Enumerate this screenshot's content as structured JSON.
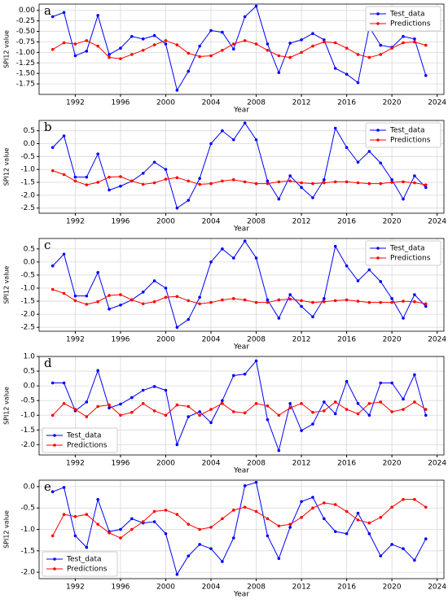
{
  "chart_data": [
    {
      "type": "line",
      "label": "a",
      "ylabel": "SPI12 value",
      "xlabel": "Year",
      "legend": "upper right",
      "grid": true,
      "x": [
        1990,
        1991,
        1992,
        1993,
        1994,
        1995,
        1996,
        1997,
        1998,
        1999,
        2000,
        2001,
        2002,
        2003,
        2004,
        2005,
        2006,
        2007,
        2008,
        2009,
        2010,
        2011,
        2012,
        2013,
        2014,
        2015,
        2016,
        2017,
        2018,
        2019,
        2020,
        2021,
        2022,
        2023
      ],
      "xlim": [
        1988.8,
        2024.6
      ],
      "xticks": [
        1992,
        1996,
        2000,
        2004,
        2008,
        2012,
        2016,
        2020,
        2024
      ],
      "ylim": [
        -2.0,
        0.15
      ],
      "yticks": [
        {
          "value": 0,
          "label": "0.00"
        },
        {
          "value": -0.25,
          "label": "-0.25"
        },
        {
          "value": -0.5,
          "label": "-0.50"
        },
        {
          "value": -0.75,
          "label": "-0.75"
        },
        {
          "value": -1,
          "label": "-1.00"
        },
        {
          "value": -1.25,
          "label": "-1.25"
        },
        {
          "value": -1.5,
          "label": "-1.50"
        },
        {
          "value": -1.75,
          "label": "-1.75"
        }
      ],
      "series": [
        {
          "name": "Test_data",
          "color": "#0000ff",
          "values": [
            -0.15,
            -0.05,
            -1.08,
            -0.97,
            -0.12,
            -1.05,
            -0.9,
            -0.62,
            -0.68,
            -0.6,
            -0.8,
            -1.9,
            -1.45,
            -0.85,
            -0.48,
            -0.52,
            -0.92,
            -0.15,
            0.1,
            -0.8,
            -1.48,
            -0.78,
            -0.7,
            -0.55,
            -0.7,
            -1.38,
            -1.52,
            -1.72,
            -0.4,
            -0.83,
            -0.88,
            -0.62,
            -0.68,
            -1.55
          ]
        },
        {
          "name": "Predictions",
          "color": "#ff0000",
          "values": [
            -0.93,
            -0.77,
            -0.8,
            -0.72,
            -0.85,
            -1.12,
            -1.15,
            -1.05,
            -0.95,
            -0.82,
            -0.72,
            -0.82,
            -1.02,
            -1.1,
            -1.08,
            -0.95,
            -0.8,
            -0.72,
            -0.8,
            -0.95,
            -1.08,
            -1.12,
            -1.0,
            -0.85,
            -0.75,
            -0.77,
            -0.9,
            -1.05,
            -1.12,
            -1.05,
            -0.9,
            -0.77,
            -0.75,
            -0.83
          ]
        }
      ]
    },
    {
      "type": "line",
      "label": "b",
      "ylabel": "SPI12 value",
      "xlabel": "Year",
      "legend": "upper right",
      "grid": true,
      "x": [
        1990,
        1991,
        1992,
        1993,
        1994,
        1995,
        1996,
        1997,
        1998,
        1999,
        2000,
        2001,
        2002,
        2003,
        2004,
        2005,
        2006,
        2007,
        2008,
        2009,
        2010,
        2011,
        2012,
        2013,
        2014,
        2015,
        2016,
        2017,
        2018,
        2019,
        2020,
        2021,
        2022,
        2023
      ],
      "xlim": [
        1988.8,
        2024.6
      ],
      "xticks": [
        1992,
        1996,
        2000,
        2004,
        2008,
        2012,
        2016,
        2020,
        2024
      ],
      "ylim": [
        -2.7,
        0.9
      ],
      "yticks": [
        0.5,
        {
          "value": 0,
          "label": "0.0"
        },
        -0.5,
        {
          "value": -1,
          "label": "-1.0"
        },
        -1.5,
        {
          "value": -2,
          "label": "-2.0"
        },
        -2.5
      ],
      "series": [
        {
          "name": "Test_data",
          "color": "#0000ff",
          "values": [
            -0.15,
            0.3,
            -1.3,
            -1.3,
            -0.4,
            -1.8,
            -1.65,
            -1.45,
            -1.15,
            -0.72,
            -1.0,
            -2.5,
            -2.2,
            -1.35,
            0.0,
            0.5,
            0.15,
            0.8,
            0.15,
            -1.45,
            -2.15,
            -1.25,
            -1.7,
            -2.1,
            -1.4,
            0.6,
            -0.15,
            -0.72,
            -0.3,
            -0.75,
            -1.4,
            -2.15,
            -1.25,
            -1.7
          ]
        },
        {
          "name": "Predictions",
          "color": "#ff0000",
          "values": [
            -1.05,
            -1.2,
            -1.45,
            -1.6,
            -1.5,
            -1.3,
            -1.28,
            -1.45,
            -1.58,
            -1.52,
            -1.38,
            -1.32,
            -1.45,
            -1.58,
            -1.55,
            -1.45,
            -1.4,
            -1.48,
            -1.55,
            -1.55,
            -1.48,
            -1.45,
            -1.52,
            -1.55,
            -1.52,
            -1.48,
            -1.48,
            -1.52,
            -1.55,
            -1.55,
            -1.5,
            -1.48,
            -1.52,
            -1.6
          ]
        }
      ]
    },
    {
      "type": "line",
      "label": "c",
      "ylabel": "SPI12 value",
      "xlabel": "Year",
      "legend": "upper right",
      "grid": true,
      "x": [
        1990,
        1991,
        1992,
        1993,
        1994,
        1995,
        1996,
        1997,
        1998,
        1999,
        2000,
        2001,
        2002,
        2003,
        2004,
        2005,
        2006,
        2007,
        2008,
        2009,
        2010,
        2011,
        2012,
        2013,
        2014,
        2015,
        2016,
        2017,
        2018,
        2019,
        2020,
        2021,
        2022,
        2023
      ],
      "xlim": [
        1988.8,
        2024.6
      ],
      "xticks": [
        1992,
        1996,
        2000,
        2004,
        2008,
        2012,
        2016,
        2020,
        2024
      ],
      "ylim": [
        -2.65,
        0.9
      ],
      "yticks": [
        0.5,
        {
          "value": 0,
          "label": "0.0"
        },
        -0.5,
        {
          "value": -1,
          "label": "-1.0"
        },
        -1.5,
        {
          "value": -2,
          "label": "-2.0"
        },
        -2.5
      ],
      "series": [
        {
          "name": "Test_data",
          "color": "#0000ff",
          "values": [
            -0.15,
            0.3,
            -1.3,
            -1.3,
            -0.4,
            -1.8,
            -1.65,
            -1.45,
            -1.15,
            -0.72,
            -1.0,
            -2.5,
            -2.2,
            -1.35,
            0.0,
            0.5,
            0.15,
            0.8,
            0.15,
            -1.45,
            -2.15,
            -1.25,
            -1.7,
            -2.1,
            -1.4,
            0.6,
            -0.15,
            -0.72,
            -0.3,
            -0.75,
            -1.4,
            -2.15,
            -1.25,
            -1.7
          ]
        },
        {
          "name": "Predictions",
          "color": "#ff0000",
          "values": [
            -1.05,
            -1.2,
            -1.48,
            -1.62,
            -1.52,
            -1.28,
            -1.25,
            -1.45,
            -1.6,
            -1.52,
            -1.35,
            -1.32,
            -1.48,
            -1.6,
            -1.55,
            -1.45,
            -1.4,
            -1.45,
            -1.55,
            -1.55,
            -1.45,
            -1.42,
            -1.48,
            -1.55,
            -1.52,
            -1.48,
            -1.45,
            -1.5,
            -1.55,
            -1.55,
            -1.55,
            -1.5,
            -1.52,
            -1.6
          ]
        }
      ]
    },
    {
      "type": "line",
      "label": "d",
      "ylabel": "SPI12 value",
      "xlabel": "Year",
      "legend": "lower left",
      "grid": true,
      "x": [
        1990,
        1991,
        1992,
        1993,
        1994,
        1995,
        1996,
        1997,
        1998,
        1999,
        2000,
        2001,
        2002,
        2003,
        2004,
        2005,
        2006,
        2007,
        2008,
        2009,
        2010,
        2011,
        2012,
        2013,
        2014,
        2015,
        2016,
        2017,
        2018,
        2019,
        2020,
        2021,
        2022,
        2023
      ],
      "xlim": [
        1988.8,
        2024.6
      ],
      "xticks": [
        1992,
        1996,
        2000,
        2004,
        2008,
        2012,
        2016,
        2020,
        2024
      ],
      "ylim": [
        -2.35,
        1.0
      ],
      "yticks": [
        {
          "value": 1,
          "label": "1.0"
        },
        0.5,
        {
          "value": 0,
          "label": "0.0"
        },
        -0.5,
        {
          "value": -1,
          "label": "-1.0"
        },
        -1.5,
        {
          "value": -2,
          "label": "-2.0"
        }
      ],
      "series": [
        {
          "name": "Test_data",
          "color": "#0000ff",
          "values": [
            0.1,
            0.1,
            -0.85,
            -0.55,
            0.52,
            -0.75,
            -0.62,
            -0.4,
            -0.15,
            -0.02,
            -0.15,
            -2.0,
            -1.05,
            -0.88,
            -1.25,
            -0.5,
            0.35,
            0.4,
            0.85,
            -1.15,
            -2.2,
            -0.6,
            -1.52,
            -1.3,
            -0.55,
            -0.95,
            0.15,
            -0.6,
            -1.0,
            0.1,
            0.1,
            -0.45,
            0.38,
            -1.0
          ]
        },
        {
          "name": "Predictions",
          "color": "#ff0000",
          "values": [
            -1.0,
            -0.6,
            -0.8,
            -1.05,
            -0.7,
            -0.65,
            -1.0,
            -0.9,
            -0.6,
            -0.85,
            -1.0,
            -0.65,
            -0.7,
            -1.0,
            -0.8,
            -0.6,
            -0.88,
            -0.92,
            -0.6,
            -0.68,
            -1.0,
            -0.75,
            -0.6,
            -0.9,
            -0.85,
            -0.55,
            -0.8,
            -0.95,
            -0.6,
            -0.55,
            -0.88,
            -0.8,
            -0.55,
            -0.8
          ]
        }
      ]
    },
    {
      "type": "line",
      "label": "e",
      "ylabel": "SPI12 value",
      "xlabel": "Year",
      "legend": "lower left",
      "grid": true,
      "x": [
        1990,
        1991,
        1992,
        1993,
        1994,
        1995,
        1996,
        1997,
        1998,
        1999,
        2000,
        2001,
        2002,
        2003,
        2004,
        2005,
        2006,
        2007,
        2008,
        2009,
        2010,
        2011,
        2012,
        2013,
        2014,
        2015,
        2016,
        2017,
        2018,
        2019,
        2020,
        2021,
        2022,
        2023
      ],
      "xlim": [
        1988.8,
        2024.6
      ],
      "xticks": [
        1992,
        1996,
        2000,
        2004,
        2008,
        2012,
        2016,
        2020,
        2024
      ],
      "ylim": [
        -2.15,
        0.15
      ],
      "yticks": [
        {
          "value": 0,
          "label": "0.0"
        },
        -0.5,
        {
          "value": -1,
          "label": "-1.0"
        },
        -1.5,
        {
          "value": -2,
          "label": "-2.0"
        }
      ],
      "series": [
        {
          "name": "Test_data",
          "color": "#0000ff",
          "values": [
            -0.12,
            -0.02,
            -1.15,
            -1.42,
            -0.3,
            -1.05,
            -1.0,
            -0.75,
            -0.85,
            -0.82,
            -1.1,
            -2.05,
            -1.62,
            -1.35,
            -1.45,
            -1.75,
            -1.2,
            0.02,
            0.1,
            -1.15,
            -1.68,
            -0.95,
            -0.35,
            -0.25,
            -0.75,
            -1.05,
            -1.1,
            -0.62,
            -1.1,
            -1.62,
            -1.35,
            -1.45,
            -1.72,
            -1.22
          ]
        },
        {
          "name": "Predictions",
          "color": "#ff0000",
          "values": [
            -1.15,
            -0.65,
            -0.7,
            -0.65,
            -0.88,
            -1.08,
            -1.2,
            -1.0,
            -0.82,
            -0.58,
            -0.55,
            -0.65,
            -0.88,
            -1.0,
            -0.95,
            -0.75,
            -0.55,
            -0.48,
            -0.58,
            -0.75,
            -0.92,
            -0.88,
            -0.72,
            -0.5,
            -0.38,
            -0.42,
            -0.58,
            -0.78,
            -0.85,
            -0.72,
            -0.48,
            -0.3,
            -0.3,
            -0.48
          ]
        }
      ]
    }
  ]
}
